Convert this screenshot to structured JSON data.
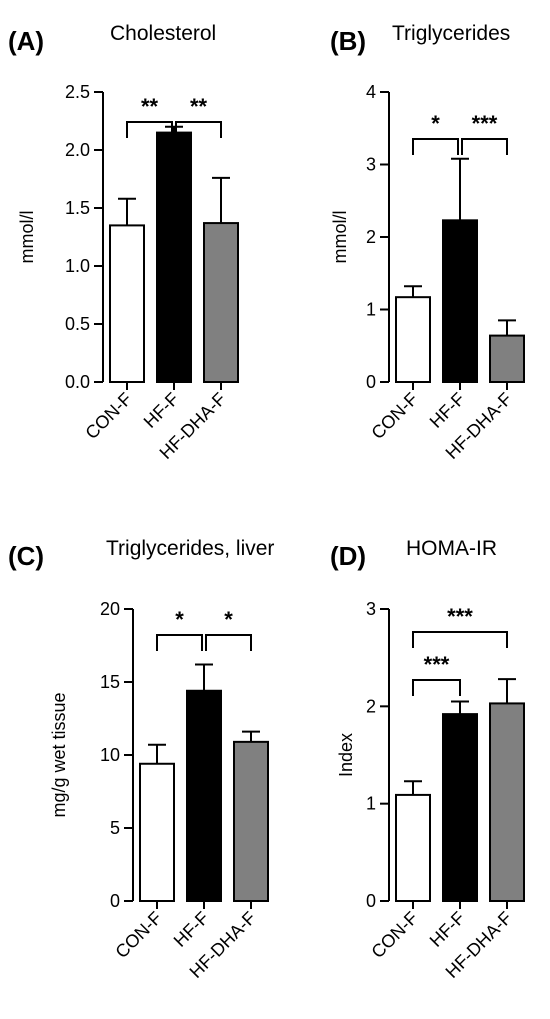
{
  "chart_data": [
    {
      "type": "bar",
      "panel": "(A)",
      "title": "Cholesterol",
      "ylabel": "mmol/l",
      "ylim": [
        0,
        2.5
      ],
      "yticks": [
        "0.0",
        "0.5",
        "1.0",
        "1.5",
        "2.0",
        "2.5"
      ],
      "categories": [
        "CON-F",
        "HF-F",
        "HF-DHA-F"
      ],
      "values": [
        1.35,
        2.15,
        1.37
      ],
      "errors": [
        0.23,
        0.05,
        0.39
      ],
      "bar_colors": [
        "#ffffff",
        "#000000",
        "#808080"
      ],
      "significance": [
        {
          "from": 0,
          "to": 1,
          "label": "**"
        },
        {
          "from": 1,
          "to": 2,
          "label": "**"
        }
      ]
    },
    {
      "type": "bar",
      "panel": "(B)",
      "title": "Triglycerides",
      "ylabel": "mmol/l",
      "ylim": [
        0,
        4
      ],
      "yticks": [
        "0",
        "1",
        "2",
        "3",
        "4"
      ],
      "categories": [
        "CON-F",
        "HF-F",
        "HF-DHA-F"
      ],
      "values": [
        1.17,
        2.23,
        0.64
      ],
      "errors": [
        0.15,
        0.85,
        0.21
      ],
      "bar_colors": [
        "#ffffff",
        "#000000",
        "#808080"
      ],
      "significance": [
        {
          "from": 0,
          "to": 1,
          "label": "*"
        },
        {
          "from": 1,
          "to": 2,
          "label": "***"
        }
      ]
    },
    {
      "type": "bar",
      "panel": "(C)",
      "title": "Triglycerides, liver",
      "ylabel": "mg/g wet tissue",
      "ylim": [
        0,
        20
      ],
      "yticks": [
        "0",
        "5",
        "10",
        "15",
        "20"
      ],
      "categories": [
        "CON-F",
        "HF-F",
        "HF-DHA-F"
      ],
      "values": [
        9.4,
        14.4,
        10.9
      ],
      "errors": [
        1.3,
        1.8,
        0.7
      ],
      "bar_colors": [
        "#ffffff",
        "#000000",
        "#808080"
      ],
      "significance": [
        {
          "from": 0,
          "to": 1,
          "label": "*"
        },
        {
          "from": 1,
          "to": 2,
          "label": "*"
        }
      ]
    },
    {
      "type": "bar",
      "panel": "(D)",
      "title": "HOMA-IR",
      "ylabel": "Index",
      "ylim": [
        0,
        3
      ],
      "yticks": [
        "0",
        "1",
        "2",
        "3"
      ],
      "categories": [
        "CON-F",
        "HF-F",
        "HF-DHA-F"
      ],
      "values": [
        1.09,
        1.92,
        2.03
      ],
      "errors": [
        0.14,
        0.13,
        0.25
      ],
      "bar_colors": [
        "#ffffff",
        "#000000",
        "#808080"
      ],
      "significance": [
        {
          "from": 0,
          "to": 1,
          "label": "***"
        },
        {
          "from": 0,
          "to": 2,
          "label": "***"
        }
      ]
    }
  ]
}
